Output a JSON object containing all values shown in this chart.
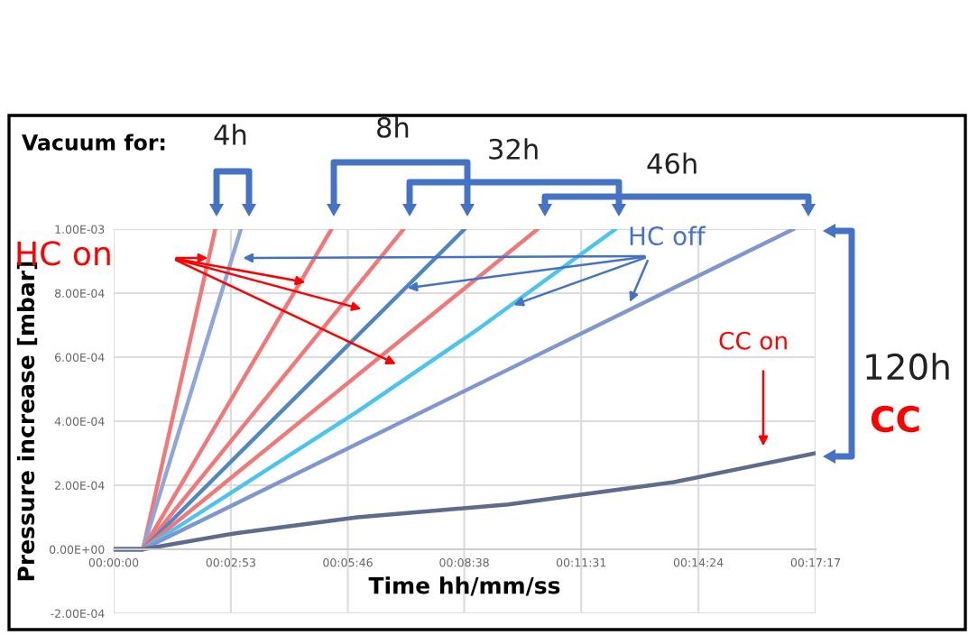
{
  "chart_data": {
    "type": "line",
    "xlabel": "Time hh/mm/ss",
    "ylabel": "Pressure increase [mbar]",
    "annotations": [
      "Vacuum for:",
      "4h",
      "8h",
      "32h",
      "46h",
      "HC on",
      {
        "text": "HC off",
        "x": 0.051,
        "y": 0.00091
      },
      "CC on",
      "120h",
      "CC"
    ],
    "xlim": [
      0,
      0.2881
    ],
    "xticks": [
      {
        "value": 0,
        "label": "00:00:00"
      },
      {
        "value": 0.0481,
        "label": "00:02:53"
      },
      {
        "value": 0.0961,
        "label": "00:05:46"
      },
      {
        "value": 0.1439,
        "label": "00:08:38"
      },
      {
        "value": 0.1919,
        "label": "00:11:31"
      },
      {
        "value": 0.24,
        "label": "00:14:24"
      },
      {
        "value": 0.2881,
        "label": "00:17:17"
      }
    ],
    "ylim": [
      -0.0002,
      0.001
    ],
    "yticks": [
      {
        "value": -0.0002,
        "label": "-2.00E-04"
      },
      {
        "value": 0,
        "label": "0.00E+00"
      },
      {
        "value": 0.0002,
        "label": "2.00E-04"
      },
      {
        "value": 0.0004,
        "label": "4.00E-04"
      },
      {
        "value": 0.0006,
        "label": "6.00E-04"
      },
      {
        "value": 0.0008,
        "label": "8.00E-04"
      },
      {
        "value": 0.001,
        "label": "1.00E-03"
      }
    ],
    "grid": true,
    "line_style": "solid",
    "marker": "none",
    "series": [
      {
        "color": "#f07878",
        "x": [
          0,
          0.012,
          0.0417
        ],
        "values": [
          0,
          0,
          0.001
        ]
      },
      {
        "color": "#8ea6dc",
        "x": [
          0,
          0.012,
          0.0522
        ],
        "values": [
          0,
          0,
          0.001
        ]
      },
      {
        "color": "#f07878",
        "x": [
          0,
          0.012,
          0.0894
        ],
        "values": [
          0,
          0,
          0.001
        ]
      },
      {
        "color": "#f07878",
        "x": [
          0,
          0.012,
          0.119
        ],
        "values": [
          0,
          0,
          0.001
        ]
      },
      {
        "color": "#4f86c6",
        "x": [
          0,
          0.012,
          0.144
        ],
        "values": [
          0,
          0,
          0.001
        ]
      },
      {
        "color": "#f07878",
        "x": [
          0,
          0.012,
          0.174
        ],
        "values": [
          0,
          0,
          0.001
        ]
      },
      {
        "color": "#4cc4f0",
        "x": [
          0,
          0.012,
          0.1,
          0.15,
          0.206
        ],
        "values": [
          0,
          0,
          0.00043,
          0.00069,
          0.001
        ]
      },
      {
        "color": "#7f97d0",
        "x": [
          0,
          0.012,
          0.279
        ],
        "values": [
          0,
          0,
          0.001
        ]
      },
      {
        "color": "#5d6b8c",
        "x": [
          0,
          0.012,
          0.05,
          0.1,
          0.162,
          0.23,
          0.288
        ],
        "values": [
          0,
          0,
          5e-05,
          0.0001,
          0.00014,
          0.00021,
          0.0003
        ]
      }
    ]
  }
}
